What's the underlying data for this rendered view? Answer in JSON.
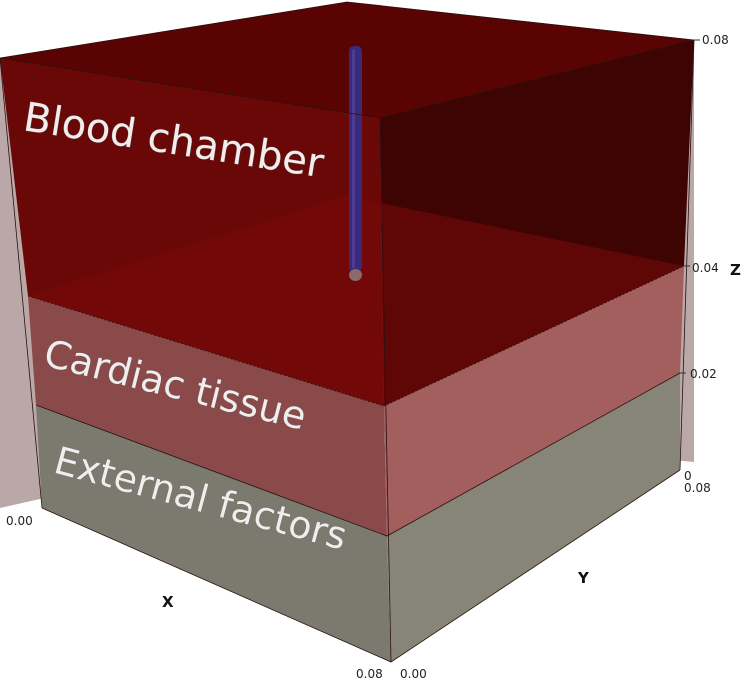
{
  "labels": {
    "blood": "Blood chamber",
    "cardiac": "Cardiac tissue",
    "external": "External factors"
  },
  "axes": {
    "x_name": "X",
    "y_name": "Y",
    "z_name": "Z",
    "x_start": "0.00",
    "x_end": "0.08",
    "y_start": "0.00",
    "y_end": "0.08",
    "z_0": "0",
    "z_002": "0.02",
    "z_004": "0.04",
    "z_008": "0.08"
  },
  "colors": {
    "blood": "#7a0a0a",
    "cardiac": "#a06060",
    "external": "#7d7a70",
    "probe": "#3a2a7a"
  }
}
